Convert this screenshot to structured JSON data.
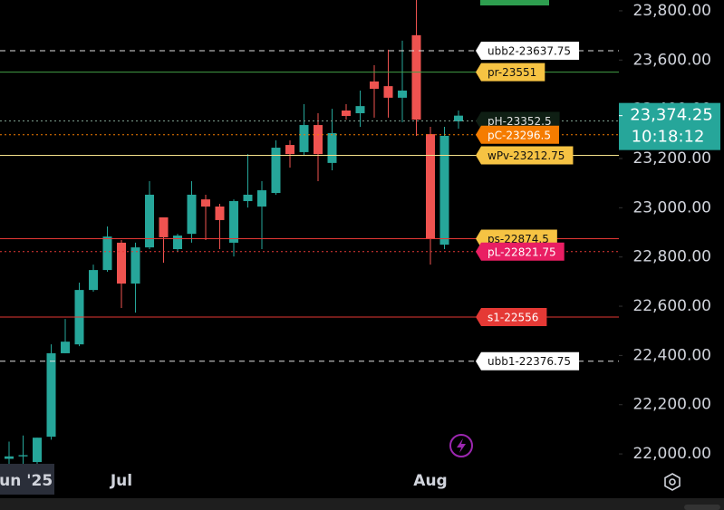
{
  "chart_data": {
    "type": "candlestick",
    "categories": [
      null,
      "Jun '25",
      null,
      null,
      null,
      null,
      null,
      null,
      "Jul",
      null,
      null,
      null,
      null,
      null,
      null,
      null,
      null,
      null,
      null,
      null,
      null,
      null,
      null,
      null,
      null,
      null,
      null,
      null,
      null,
      null,
      "Aug",
      null,
      null
    ],
    "up_color": "#26a69a",
    "down_color": "#ef5350",
    "open": [
      21980,
      21990,
      21967,
      22070,
      22409,
      22445,
      22666,
      22747,
      22858,
      22692,
      22839,
      22961,
      22832,
      22894,
      23034,
      23005,
      22858,
      23027,
      23005,
      23060,
      23255,
      23226,
      23336,
      23182,
      23395,
      23384,
      23513,
      23494,
      23447,
      23701,
      23299,
      22850,
      23351
    ],
    "high": [
      22050,
      22075,
      22066,
      22445,
      22548,
      22696,
      22769,
      22924,
      22869,
      22858,
      23108,
      22961,
      22894,
      23108,
      23053,
      23016,
      23034,
      23218,
      23108,
      23274,
      23274,
      23421,
      23384,
      23402,
      23421,
      23476,
      23579,
      23642,
      23679,
      23844,
      23329,
      23329,
      23395
    ],
    "low": [
      21960,
      21960,
      21960,
      22058,
      22409,
      22438,
      22659,
      22740,
      22593,
      22574,
      22832,
      22777,
      22821,
      22858,
      22869,
      22832,
      22802,
      23001,
      22832,
      23053,
      23163,
      23211,
      23108,
      23152,
      23358,
      23329,
      23366,
      23366,
      23347,
      23292,
      22769,
      22832,
      23321
    ],
    "close": [
      21990,
      21995,
      22066,
      22409,
      22456,
      22666,
      22747,
      22883,
      22692,
      22839,
      23053,
      22880,
      22887,
      23053,
      23005,
      22950,
      23027,
      23053,
      23071,
      23244,
      23218,
      23336,
      23218,
      23303,
      23373,
      23413,
      23483,
      23447,
      23476,
      23358,
      22876,
      23292,
      23374.25
    ],
    "ylim": [
      21820,
      23844
    ],
    "yticks": [
      {
        "value": 22000,
        "label": "22,000.00"
      },
      {
        "value": 22200,
        "label": "22,200.00"
      },
      {
        "value": 22400,
        "label": "22,400.00"
      },
      {
        "value": 22600,
        "label": "22,600.00"
      },
      {
        "value": 22800,
        "label": "22,800.00"
      },
      {
        "value": 23000,
        "label": "23,000.00"
      },
      {
        "value": 23200,
        "label": "23,200.00"
      },
      {
        "value": 23400,
        "label": "23,400.00"
      },
      {
        "value": 23600,
        "label": "23,600.00"
      },
      {
        "value": 23800,
        "label": "23,800.00"
      }
    ],
    "levels": [
      {
        "label": "ubb2-23637.75",
        "value": 23637.75,
        "style": "dashed",
        "line_color": "#e0e0e0",
        "box_color": "#ffffff",
        "text_color": "#111111"
      },
      {
        "label": "pr-23551",
        "value": 23551,
        "style": "solid",
        "line_color": "#43a047",
        "box_color": "#f6c343",
        "text_color": "#111111"
      },
      {
        "label": "pH-23352.5",
        "value": 23352.5,
        "style": "dotted",
        "line_color": "#7f9f8f",
        "box_color": "#0f1f14",
        "text_color": "#e0e0e0"
      },
      {
        "label": "pC-23296.5",
        "value": 23296.5,
        "style": "dotted",
        "line_color": "#f57c00",
        "box_color": "#f57c00",
        "text_color": "#ffffff"
      },
      {
        "label": "wPv-23212.75",
        "value": 23212.75,
        "style": "solid",
        "line_color": "#f3e08a",
        "box_color": "#f6c343",
        "text_color": "#111111"
      },
      {
        "label": "ps-22874.5",
        "value": 22874.5,
        "style": "solid",
        "line_color": "#e53935",
        "box_color": "#f6c343",
        "text_color": "#111111"
      },
      {
        "label": "pL-22821.75",
        "value": 22821.75,
        "style": "dotted",
        "line_color": "#e53935",
        "box_color": "#e91e63",
        "text_color": "#ffffff"
      },
      {
        "label": "s1-22556",
        "value": 22556,
        "style": "solid",
        "line_color": "#e53935",
        "box_color": "#e53935",
        "text_color": "#ffffff"
      },
      {
        "label": "ubb1-22376.75",
        "value": 22376.75,
        "style": "dashed",
        "line_color": "#e0e0e0",
        "box_color": "#ffffff",
        "text_color": "#111111"
      }
    ],
    "last_price": {
      "value": 23374.25,
      "label": "23,374.25"
    },
    "countdown": "10:18:12",
    "price_box_color": "#26a69a"
  }
}
